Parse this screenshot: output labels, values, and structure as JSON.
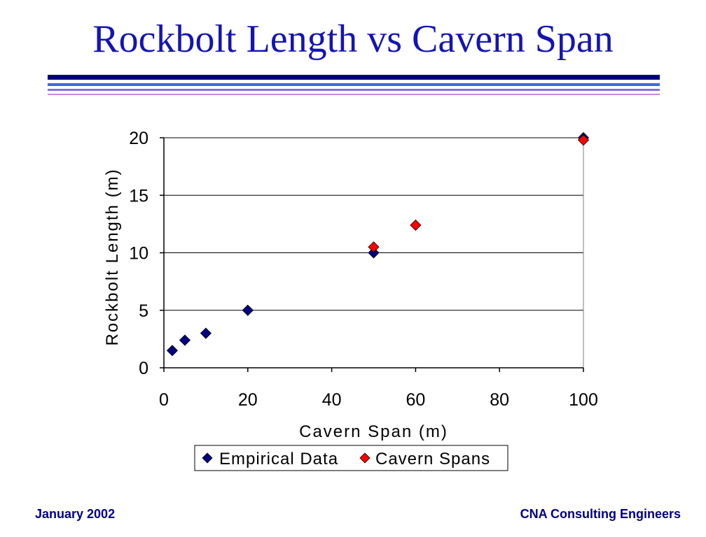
{
  "slide": {
    "title": "Rockbolt Length vs Cavern Span",
    "footer_left": "January 2002",
    "footer_right": "CNA Consulting Engineers"
  },
  "chart_data": {
    "type": "scatter",
    "title": "",
    "xlabel": "Cavern Span (m)",
    "ylabel": "Rockbolt Length (m)",
    "xlim": [
      0,
      100
    ],
    "ylim": [
      0,
      20
    ],
    "xticks": [
      0,
      20,
      40,
      60,
      80,
      100
    ],
    "yticks": [
      0,
      5,
      10,
      15,
      20
    ],
    "grid": "horizontal",
    "legend": "bottom",
    "series": [
      {
        "name": "Empirical Data",
        "color": "#000080",
        "marker": "diamond",
        "points": [
          {
            "x": 2,
            "y": 1.5
          },
          {
            "x": 5,
            "y": 2.4
          },
          {
            "x": 10,
            "y": 3
          },
          {
            "x": 20,
            "y": 5
          },
          {
            "x": 50,
            "y": 10
          },
          {
            "x": 100,
            "y": 20
          }
        ]
      },
      {
        "name": "Cavern Spans",
        "color": "#ff0000",
        "marker": "diamond",
        "points": [
          {
            "x": 50,
            "y": 10.5
          },
          {
            "x": 60,
            "y": 12.4
          },
          {
            "x": 100,
            "y": 19.8
          }
        ]
      }
    ]
  }
}
